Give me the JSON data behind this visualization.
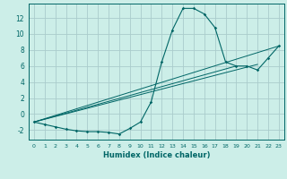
{
  "xlabel": "Humidex (Indice chaleur)",
  "bg_color": "#cceee8",
  "line_color": "#006666",
  "grid_color": "#aacccc",
  "xlim": [
    -0.5,
    23.5
  ],
  "ylim": [
    -3.2,
    13.8
  ],
  "xticks": [
    0,
    1,
    2,
    3,
    4,
    5,
    6,
    7,
    8,
    9,
    10,
    11,
    12,
    13,
    14,
    15,
    16,
    17,
    18,
    19,
    20,
    21,
    22,
    23
  ],
  "yticks": [
    -2,
    0,
    2,
    4,
    6,
    8,
    10,
    12
  ],
  "main_x": [
    0,
    1,
    2,
    3,
    4,
    5,
    6,
    7,
    8,
    9,
    10,
    11,
    12,
    13,
    14,
    15,
    16,
    17,
    18,
    19,
    20,
    21,
    22,
    23
  ],
  "main_y": [
    -1.0,
    -1.3,
    -1.6,
    -1.9,
    -2.1,
    -2.2,
    -2.2,
    -2.3,
    -2.5,
    -1.8,
    -1.0,
    1.5,
    6.5,
    10.5,
    13.2,
    13.2,
    12.5,
    10.8,
    6.5,
    6.0,
    6.0,
    5.5,
    7.0,
    8.5
  ],
  "line2_x": [
    0,
    23
  ],
  "line2_y": [
    -1.0,
    8.5
  ],
  "line3_x": [
    0,
    19
  ],
  "line3_y": [
    -1.0,
    6.0
  ],
  "line4_x": [
    0,
    21
  ],
  "line4_y": [
    -1.0,
    6.2
  ]
}
